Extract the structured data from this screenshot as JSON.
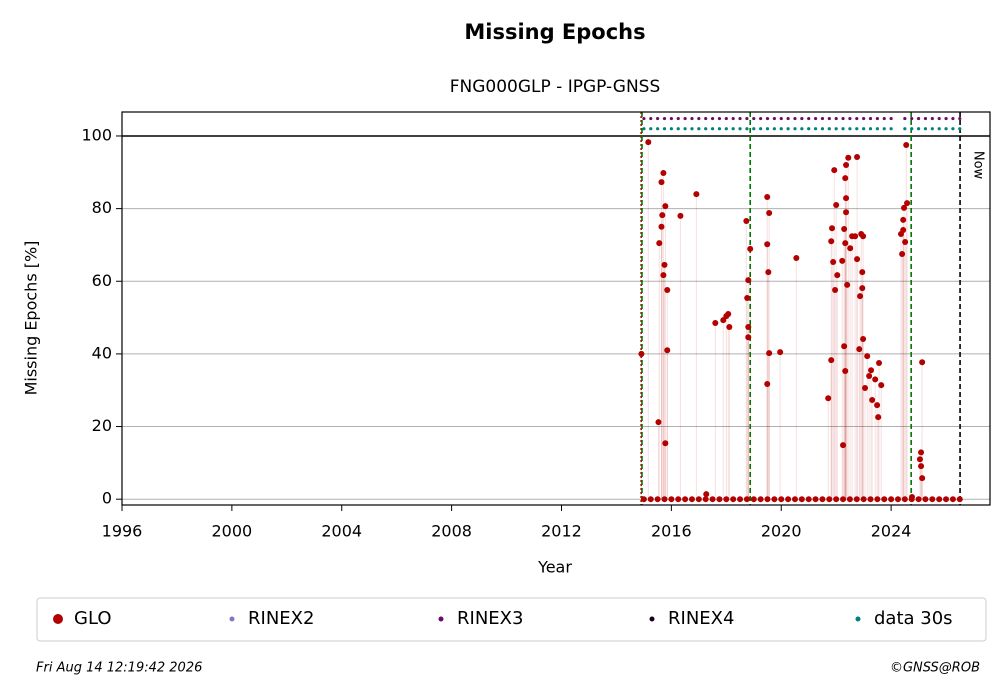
{
  "chart_data": {
    "type": "scatter",
    "title": "Missing Epochs",
    "subtitle": "FNG000GLP - IPGP-GNSS",
    "x_label": "Year",
    "y_label": "Missing Epochs [%]",
    "xlim": [
      1996,
      2027.6
    ],
    "ylim": [
      -1.6,
      106.6
    ],
    "xticks": [
      1996,
      2000,
      2004,
      2008,
      2012,
      2016,
      2020,
      2024
    ],
    "yticks": [
      0,
      20,
      40,
      60,
      80,
      100
    ],
    "grid": true,
    "hline": 100,
    "vlines": [
      {
        "x": 2014.9,
        "color": "#cc0000",
        "style": "dotted"
      },
      {
        "x": 2014.93,
        "color": "#007700",
        "style": "dashed"
      },
      {
        "x": 2018.87,
        "color": "#007700",
        "style": "dashed"
      },
      {
        "x": 2024.73,
        "color": "#007700",
        "style": "dashed"
      },
      {
        "x": 2026.51,
        "color": "#000000",
        "style": "dashed"
      }
    ],
    "annotation": "Now",
    "series": [
      {
        "name": "GLO",
        "color": "#b30000",
        "x": [
          2014.91,
          2015.16,
          2015.53,
          2015.56,
          2015.64,
          2015.71,
          2015.75,
          2015.67,
          2015.78,
          2015.85,
          2015.78,
          2015.85,
          2015.71,
          2015.64,
          2016.33,
          2016.91,
          2017.27,
          2017.6,
          2017.89,
          2018.0,
          2018.07,
          2018.11,
          2018.73,
          2018.76,
          2018.8,
          2018.8,
          2018.87,
          2018.8,
          2019.49,
          2019.56,
          2019.49,
          2019.53,
          2019.49,
          2019.56,
          2019.96,
          2020.55,
          2021.71,
          2021.82,
          2021.82,
          2021.85,
          2021.93,
          2022.0,
          2021.89,
          2021.96,
          2022.04,
          2022.22,
          2022.25,
          2022.29,
          2022.33,
          2022.29,
          2022.36,
          2022.44,
          2022.33,
          2022.36,
          2022.36,
          2022.33,
          2022.4,
          2022.51,
          2022.58,
          2022.76,
          2022.69,
          2022.76,
          2022.87,
          2022.95,
          2022.95,
          2022.98,
          2022.84,
          2022.98,
          2022.91,
          2023.05,
          2023.13,
          2023.27,
          2023.31,
          2023.42,
          2023.49,
          2023.56,
          2023.53,
          2023.64,
          2023.2,
          2024.4,
          2024.44,
          2024.47,
          2024.55,
          2024.58,
          2024.51,
          2024.44,
          2024.36,
          2024.76,
          2025.13,
          2025.09,
          2025.09,
          2025.13,
          2025.05,
          2015,
          2015.25,
          2015.5,
          2015.75,
          2016,
          2016.25,
          2016.5,
          2016.75,
          2017,
          2017.25,
          2017.5,
          2017.75,
          2018,
          2018.25,
          2018.5,
          2018.75,
          2019,
          2019.25,
          2019.5,
          2019.75,
          2020,
          2020.25,
          2020.5,
          2020.75,
          2021,
          2021.25,
          2021.5,
          2021.75,
          2022,
          2022.25,
          2022.5,
          2022.75,
          2023,
          2023.25,
          2023.5,
          2023.75,
          2024,
          2024.25,
          2024.5,
          2024.75,
          2025,
          2025.25,
          2025.5,
          2025.75,
          2026,
          2026.25,
          2026.5
        ],
        "values": [
          40,
          98.3,
          21.2,
          70.5,
          87.3,
          89.8,
          64.5,
          78.2,
          80.7,
          41,
          15.4,
          57.6,
          61.7,
          75,
          78,
          84,
          1.4,
          48.5,
          49.3,
          50.4,
          51,
          47.4,
          76.6,
          55.4,
          44.6,
          47.4,
          68.9,
          60.3,
          83.2,
          78.8,
          70.2,
          62.5,
          31.7,
          40.2,
          40.5,
          66.4,
          27.8,
          38.3,
          71,
          74.6,
          90.6,
          81,
          65.3,
          57.6,
          61.7,
          65.6,
          14.9,
          42.1,
          35.3,
          74.4,
          92,
          94,
          88.4,
          82.9,
          79,
          70.5,
          59,
          69.1,
          72.4,
          94.2,
          72.4,
          66.1,
          55.9,
          58.1,
          62.5,
          72.4,
          41.3,
          44.1,
          73,
          30.6,
          39.4,
          35.5,
          27.3,
          33,
          25.9,
          37.5,
          22.6,
          31.4,
          33.9,
          67.5,
          74.1,
          80.2,
          97.5,
          81.5,
          70.8,
          76.9,
          73,
          0.6,
          37.7,
          12.9,
          9.1,
          5.8,
          11,
          0,
          0,
          0,
          0,
          0,
          0,
          0,
          0,
          0,
          0,
          0,
          0,
          0,
          0,
          0,
          0,
          0,
          0,
          0,
          0,
          0,
          0,
          0,
          0,
          0,
          0,
          0,
          0,
          0,
          0,
          0,
          0,
          0,
          0,
          0,
          0,
          0,
          0,
          0,
          0,
          0,
          0,
          0,
          0,
          0,
          0,
          0
        ]
      },
      {
        "name": "RINEX2",
        "color": "#7b7bc0",
        "x": [],
        "values": []
      },
      {
        "name": "RINEX3",
        "color": "#6a0a6a",
        "x": [
          2015,
          2015.25,
          2015.5,
          2015.75,
          2016,
          2016.25,
          2016.5,
          2016.75,
          2017,
          2017.25,
          2017.5,
          2017.75,
          2018,
          2018.25,
          2018.5,
          2018.75,
          2019,
          2019.25,
          2019.5,
          2019.75,
          2020,
          2020.25,
          2020.5,
          2020.75,
          2021,
          2021.25,
          2021.5,
          2021.75,
          2022,
          2022.25,
          2022.5,
          2022.75,
          2023,
          2023.25,
          2023.5,
          2023.75,
          2024,
          2024.5,
          2024.75,
          2025,
          2025.25,
          2025.5,
          2025.75,
          2026,
          2026.25,
          2026.5
        ],
        "values": [
          104.8,
          104.8,
          104.8,
          104.8,
          104.8,
          104.8,
          104.8,
          104.8,
          104.8,
          104.8,
          104.8,
          104.8,
          104.8,
          104.8,
          104.8,
          104.8,
          104.8,
          104.8,
          104.8,
          104.8,
          104.8,
          104.8,
          104.8,
          104.8,
          104.8,
          104.8,
          104.8,
          104.8,
          104.8,
          104.8,
          104.8,
          104.8,
          104.8,
          104.8,
          104.8,
          104.8,
          104.8,
          104.8,
          104.8,
          104.8,
          104.8,
          104.8,
          104.8,
          104.8,
          104.8,
          104.8
        ]
      },
      {
        "name": "RINEX4",
        "color": "#1a0020",
        "x": [],
        "values": []
      },
      {
        "name": "data 30s",
        "color": "#008080",
        "x": [
          2015,
          2015.25,
          2015.5,
          2015.75,
          2016,
          2016.25,
          2016.5,
          2016.75,
          2017,
          2017.25,
          2017.5,
          2017.75,
          2018,
          2018.25,
          2018.5,
          2018.75,
          2019,
          2019.25,
          2019.5,
          2019.75,
          2020,
          2020.25,
          2020.5,
          2020.75,
          2021,
          2021.25,
          2021.5,
          2021.75,
          2022,
          2022.25,
          2022.5,
          2022.75,
          2023,
          2023.25,
          2023.5,
          2023.75,
          2024,
          2024.5,
          2024.75,
          2025,
          2025.25,
          2025.5,
          2025.75,
          2026,
          2026.25,
          2026.5
        ],
        "values": [
          102,
          102,
          102,
          102,
          102,
          102,
          102,
          102,
          102,
          102,
          102,
          102,
          102,
          102,
          102,
          102,
          102,
          102,
          102,
          102,
          102,
          102,
          102,
          102,
          102,
          102,
          102,
          102,
          102,
          102,
          102,
          102,
          102,
          102,
          102,
          102,
          102,
          102,
          102,
          102,
          102,
          102,
          102,
          102,
          102,
          102
        ]
      }
    ],
    "timestamp": "Fri Aug 14 12:19:42 2026",
    "credit": "©GNSS@ROB"
  }
}
